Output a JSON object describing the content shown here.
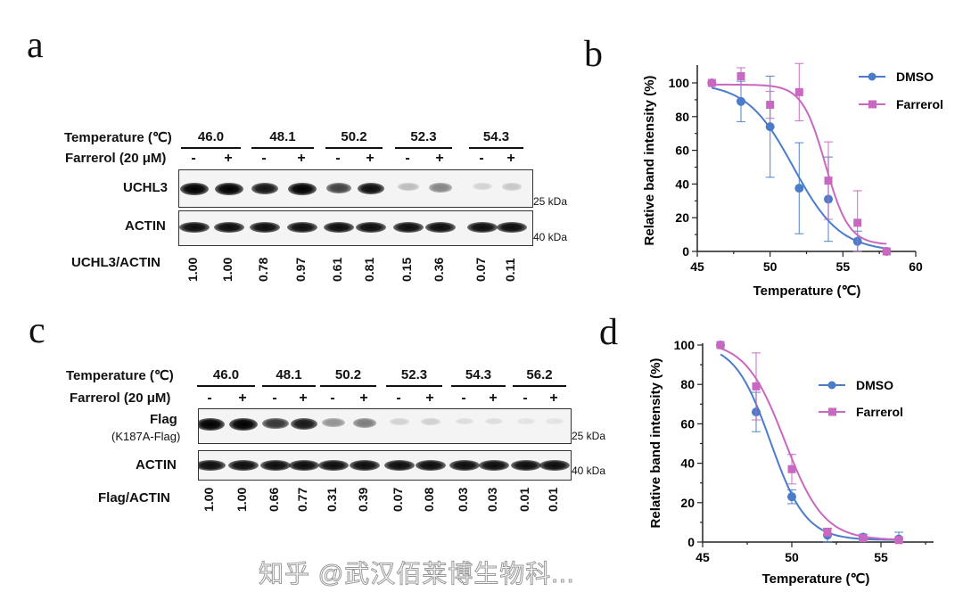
{
  "panel_labels": {
    "a": "a",
    "b": "b",
    "c": "c",
    "d": "d"
  },
  "blot_a": {
    "temperature_label": "Temperature (℃)",
    "temperatures": [
      "46.0",
      "48.1",
      "50.2",
      "52.3",
      "54.3"
    ],
    "treatment_label": "Farrerol (20 μM)",
    "treatment_signs": [
      "-",
      "+",
      "-",
      "+",
      "-",
      "+",
      "-",
      "+",
      "-",
      "+"
    ],
    "target_label": "UCHL3",
    "loading_label": "ACTIN",
    "marker_25": "25 kDa",
    "marker_40": "40 kDa",
    "ratio_label": "UCHL3/ACTIN",
    "ratios": [
      "1.00",
      "1.00",
      "0.78",
      "0.97",
      "0.61",
      "0.81",
      "0.15",
      "0.36",
      "0.07",
      "0.11"
    ]
  },
  "blot_c": {
    "temperature_label": "Temperature (℃)",
    "temperatures": [
      "46.0",
      "48.1",
      "50.2",
      "52.3",
      "54.3",
      "56.2"
    ],
    "treatment_label": "Farrerol (20 μM)",
    "treatment_signs": [
      "-",
      "+",
      "-",
      "+",
      "-",
      "+",
      "-",
      "+",
      "-",
      "+",
      "-",
      "+"
    ],
    "target_label": "Flag",
    "target_sublabel": "(K187A-Flag)",
    "loading_label": "ACTIN",
    "marker_25": "25 kDa",
    "marker_40": "40 kDa",
    "ratio_label": "Flag/ACTIN",
    "ratios": [
      "1.00",
      "1.00",
      "0.66",
      "0.77",
      "0.31",
      "0.39",
      "0.07",
      "0.08",
      "0.03",
      "0.03",
      "0.01",
      "0.01"
    ]
  },
  "chart_data": [
    {
      "panel": "b",
      "type": "line",
      "xlabel": "Temperature (℃)",
      "ylabel": "Relative band intensity (%)",
      "xlim": [
        45,
        60
      ],
      "ylim": [
        0,
        110
      ],
      "xticks": [
        "45",
        "50",
        "55",
        "60"
      ],
      "yticks": [
        "0",
        "20",
        "40",
        "60",
        "80",
        "100"
      ],
      "grid": false,
      "legend": "top-right",
      "series": [
        {
          "name": "DMSO",
          "color": "#4a7cc9",
          "marker": "circle",
          "x": [
            46,
            48,
            50,
            52,
            54,
            56,
            58
          ],
          "y": [
            100,
            89,
            74,
            37.5,
            31,
            6,
            0
          ],
          "err": [
            0,
            12,
            30,
            27,
            25,
            6,
            0
          ]
        },
        {
          "name": "Farrerol",
          "color": "#c868c0",
          "marker": "square",
          "x": [
            46,
            48,
            50,
            52,
            54,
            56,
            58
          ],
          "y": [
            100,
            104,
            87,
            94.5,
            42,
            17,
            0
          ],
          "err": [
            0,
            5,
            8,
            17,
            23,
            19,
            0
          ]
        }
      ]
    },
    {
      "panel": "d",
      "type": "line",
      "xlabel": "Temperature (℃)",
      "ylabel": "Relative band intensity (%)",
      "xlim": [
        45,
        58
      ],
      "ylim": [
        0,
        100
      ],
      "xticks": [
        "45",
        "50",
        "55"
      ],
      "yticks": [
        "0",
        "20",
        "40",
        "60",
        "80",
        "100"
      ],
      "grid": false,
      "legend": "top-right",
      "series": [
        {
          "name": "DMSO",
          "color": "#4a7cc9",
          "marker": "circle",
          "x": [
            46,
            48,
            50,
            52,
            54,
            56
          ],
          "y": [
            100,
            66,
            23,
            3.5,
            2.5,
            1.5
          ],
          "err": [
            0,
            10,
            3.5,
            3.5,
            1.5,
            3.5
          ]
        },
        {
          "name": "Farrerol",
          "color": "#c868c0",
          "marker": "square",
          "x": [
            46,
            48,
            50,
            52,
            54,
            56
          ],
          "y": [
            100,
            79,
            37,
            5,
            2,
            1
          ],
          "err": [
            0,
            17,
            7.5,
            2,
            1,
            1
          ]
        }
      ]
    }
  ],
  "watermark": "知乎 @武汉佰莱博生物科..."
}
